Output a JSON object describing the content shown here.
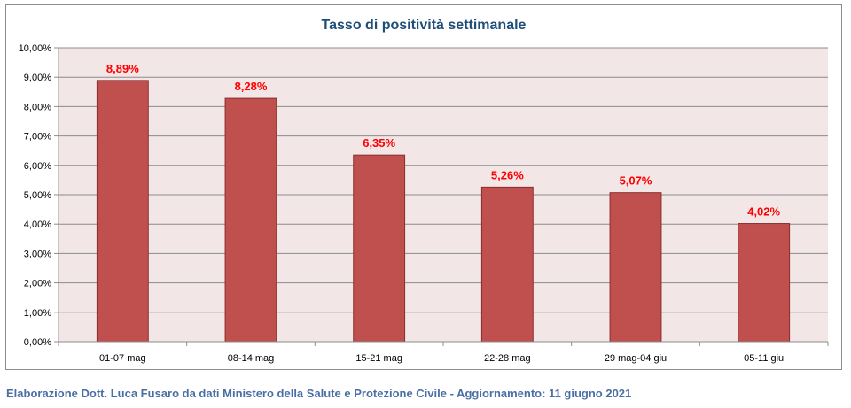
{
  "chart_data": {
    "type": "bar",
    "title": "Tasso di positività settimanale",
    "categories": [
      "01-07 mag",
      "08-14 mag",
      "15-21 mag",
      "22-28 mag",
      "29 mag-04 giu",
      "05-11 giu"
    ],
    "values": [
      8.89,
      8.28,
      6.35,
      5.26,
      5.07,
      4.02
    ],
    "data_labels": [
      "8,89%",
      "8,28%",
      "6,35%",
      "5,26%",
      "5,07%",
      "4,02%"
    ],
    "ylim": [
      0,
      10
    ],
    "yticks": [
      0,
      1,
      2,
      3,
      4,
      5,
      6,
      7,
      8,
      9,
      10
    ],
    "ytick_labels": [
      "0,00%",
      "1,00%",
      "2,00%",
      "3,00%",
      "4,00%",
      "5,00%",
      "6,00%",
      "7,00%",
      "8,00%",
      "9,00%",
      "10,00%"
    ],
    "grid": true,
    "colors": {
      "bar": "#c0504d",
      "bar_border": "#8b2e2c",
      "plot_bg": "#f2e6e6",
      "data_label": "#ff0000",
      "title": "#1f4e79",
      "footer": "#4a6fa5"
    }
  },
  "footer": "Elaborazione Dott. Luca Fusaro da dati Ministero della Salute e Protezione Civile - Aggiornamento: 11 giugno 2021"
}
